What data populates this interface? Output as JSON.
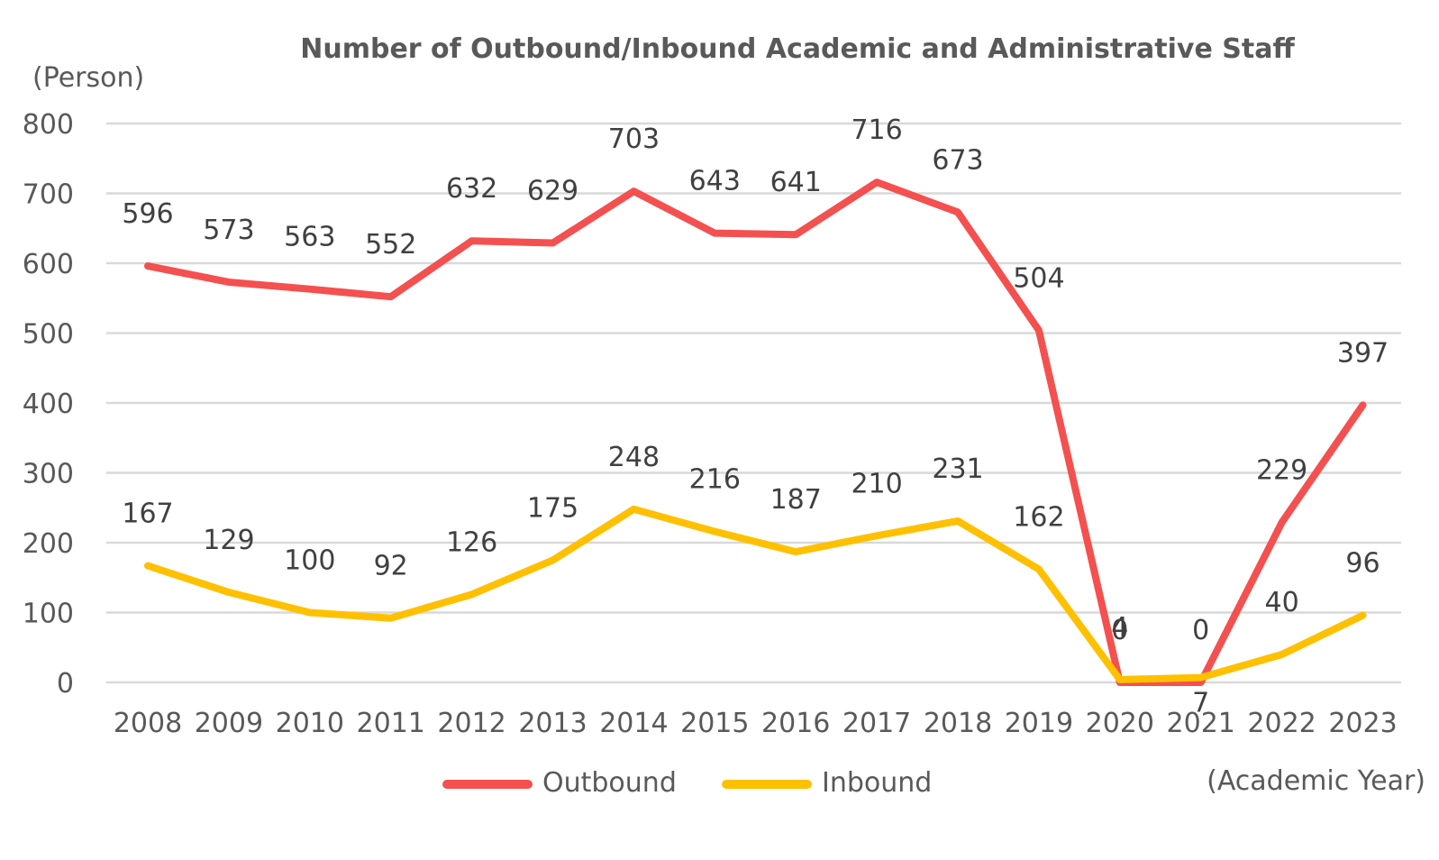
{
  "chart_data": {
    "type": "line",
    "title": "Number of Outbound/Inbound Academic and Administrative Staff",
    "ylabel": "(Person)",
    "xlabel": "(Academic Year)",
    "categories": [
      "2008",
      "2009",
      "2010",
      "2011",
      "2012",
      "2013",
      "2014",
      "2015",
      "2016",
      "2017",
      "2018",
      "2019",
      "2020",
      "2021",
      "2022",
      "2023"
    ],
    "ylim": [
      0,
      800
    ],
    "yticks": [
      0,
      100,
      200,
      300,
      400,
      500,
      600,
      700,
      800
    ],
    "grid": true,
    "legend_position": "bottom",
    "series": [
      {
        "name": "Outbound",
        "color": "#F4504F",
        "values": [
          596,
          573,
          563,
          552,
          632,
          629,
          703,
          643,
          641,
          716,
          673,
          504,
          0,
          0,
          229,
          397
        ]
      },
      {
        "name": "Inbound",
        "color": "#FFC000",
        "values": [
          167,
          129,
          100,
          92,
          126,
          175,
          248,
          216,
          187,
          210,
          231,
          162,
          4,
          7,
          40,
          96
        ]
      }
    ]
  }
}
